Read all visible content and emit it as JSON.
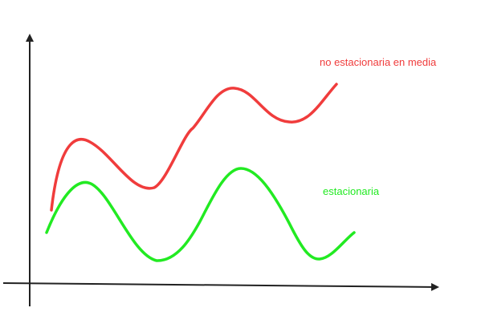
{
  "series": [
    {
      "key": "red",
      "name": "no estacionaria en media",
      "color": "#f03c3c"
    },
    {
      "key": "green",
      "name": "estacionaria",
      "color": "#22ea22"
    }
  ],
  "axis_color": "#222222"
}
